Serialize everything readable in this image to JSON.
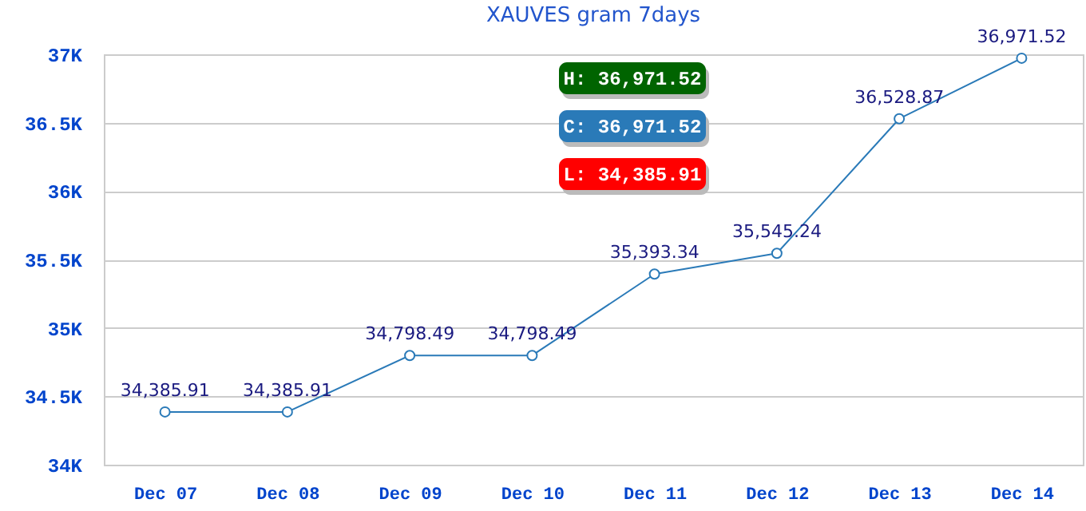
{
  "chart_data": {
    "type": "line",
    "title": "XAUVES gram  7days",
    "categories": [
      "Dec 07",
      "Dec 08",
      "Dec 09",
      "Dec 10",
      "Dec 11",
      "Dec 12",
      "Dec 13",
      "Dec 14"
    ],
    "series": [
      {
        "color": "#2a7ab8",
        "values": [
          34385.91,
          34385.91,
          34798.49,
          34798.49,
          35393.34,
          35545.24,
          36528.87,
          36971.52
        ],
        "value_labels": [
          "34,385.91",
          "34,385.91",
          "34,798.49",
          "34,798.49",
          "35,393.34",
          "35,545.24",
          "36,528.87",
          "36,971.52"
        ]
      }
    ],
    "ylim": [
      34000,
      37000
    ],
    "yticks": [
      {
        "value": 34000,
        "label": "34K"
      },
      {
        "value": 34500,
        "label": "34.5K"
      },
      {
        "value": 35000,
        "label": "35K"
      },
      {
        "value": 35500,
        "label": "35.5K"
      },
      {
        "value": 36000,
        "label": "36K"
      },
      {
        "value": 36500,
        "label": "36.5K"
      },
      {
        "value": 37000,
        "label": "37K"
      }
    ],
    "grid": "y",
    "marker": "circle",
    "line_style": "solid",
    "annotations": [
      "H: 36,971.52",
      "C: 36,971.52",
      "L: 34,385.91"
    ]
  }
}
